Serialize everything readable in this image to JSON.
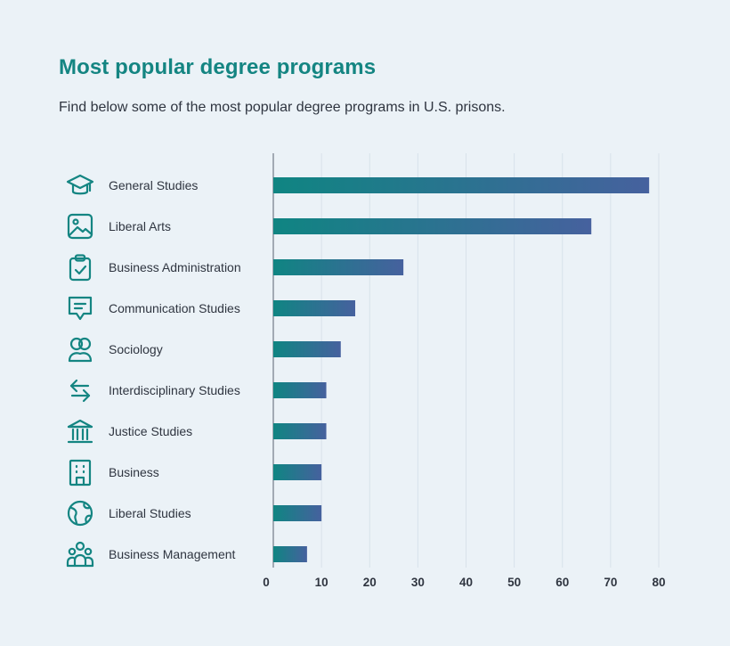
{
  "title": "Most popular degree programs",
  "subtitle": "Find below some of the most popular degree programs in U.S. prisons.",
  "colors": {
    "background": "#ebf2f7",
    "title": "#148582",
    "bar_start": "#0f8582",
    "bar_end": "#46619e",
    "icon": "#148582",
    "text": "#2f3540",
    "grid": "#d8e2ea"
  },
  "chart_data": {
    "type": "bar",
    "orientation": "horizontal",
    "categories": [
      "General Studies",
      "Liberal Arts",
      "Business Administration",
      "Communication Studies",
      "Sociology",
      "Interdisciplinary Studies",
      "Justice Studies",
      "Business",
      "Liberal Studies",
      "Business Management"
    ],
    "icons": [
      "graduation-cap-icon",
      "image-icon",
      "clipboard-check-icon",
      "message-icon",
      "users-icon",
      "arrows-exchange-icon",
      "courthouse-icon",
      "building-icon",
      "globe-icon",
      "team-icon"
    ],
    "values": [
      78,
      66,
      27,
      17,
      14,
      11,
      11,
      10,
      10,
      7
    ],
    "xlim": [
      0,
      80
    ],
    "xticks": [
      0,
      10,
      20,
      30,
      40,
      50,
      60,
      70,
      80
    ],
    "grid": true,
    "title": "Most popular degree programs",
    "subtitle": "Find below some of the most popular degree programs in U.S. prisons.",
    "xlabel": "",
    "ylabel": ""
  }
}
